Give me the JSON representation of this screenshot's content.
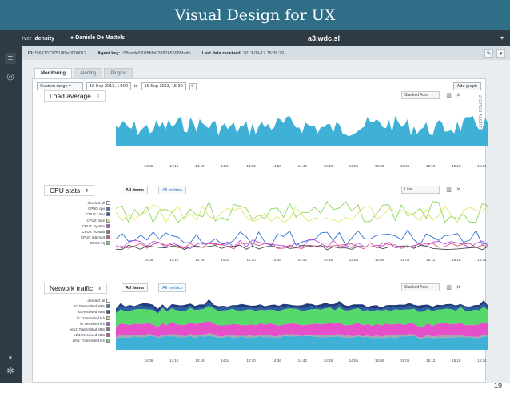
{
  "slide": {
    "title": "Visual Design for UX",
    "page_number": "19"
  },
  "topbar": {
    "brand_prefix": "server",
    "brand": "density",
    "user": "Daniele De Mattels",
    "host": "a3.wdc.sl",
    "account_icon": "user-icon",
    "dropdown_icon": "chevron-down-icon"
  },
  "infobar": {
    "id_label": "ID:",
    "id_value": "5f6870737518f0a0000012",
    "agent_label": "Agent key:",
    "agent_value": "c08bdd4537f8fdb02887656985bbfe",
    "last_label": "Last data received:",
    "last_value": "2013-09-17 15:38:29"
  },
  "tabs": [
    "Monitoring",
    "Alerting",
    "Plugins"
  ],
  "toolbar": {
    "range": "Custom range",
    "from": "16 Sep 2013, 14:00",
    "to_label": "to",
    "to": "16 Sep 2013, 15:30",
    "add_graph": "Add graph"
  },
  "vertical_tabs": "2  OPEN ALERTS",
  "x_ticks": [
    "14:06",
    "14:12",
    "14:18",
    "14:24",
    "14:30",
    "14:36",
    "14:42",
    "14:48",
    "14:54",
    "15:00",
    "15:06",
    "15:12",
    "15:18",
    "15:24"
  ],
  "charts": [
    {
      "title": "Load average",
      "type": "Stacked Area"
    },
    {
      "title": "CPU stats",
      "type": "Line",
      "items_filter": "All items",
      "metrics_filter": "All metrics",
      "legend": [
        "deselect all",
        "CPU0: cpu",
        "CPU0: User",
        "CPU0: Nice",
        "CPU0: System",
        "CPU0: I/O wait",
        "CPU0: Interrupt",
        "CPU0: irq"
      ]
    },
    {
      "title": "Network traffic",
      "type": "Stacked Area",
      "items_filter": "All items",
      "metrics_filter": "All metrics",
      "legend": [
        "deselect all",
        "lo: Transmitted MBs",
        "lo: Received MBs",
        "lo: Transmitted k b",
        "lo: Received k b",
        "eth1: Transmitted MBs",
        "eth1: Received MBs",
        "eth1: Transmitted k b"
      ]
    }
  ],
  "colors": {
    "banner": "#2f6e87",
    "sidebar": "#2e3a44",
    "area_blue": "#3fb0d6",
    "area_green": "#56d86a",
    "area_pink": "#e54fc9",
    "area_dark": "#1f3b7a",
    "area_navy": "#2a5fa0"
  }
}
